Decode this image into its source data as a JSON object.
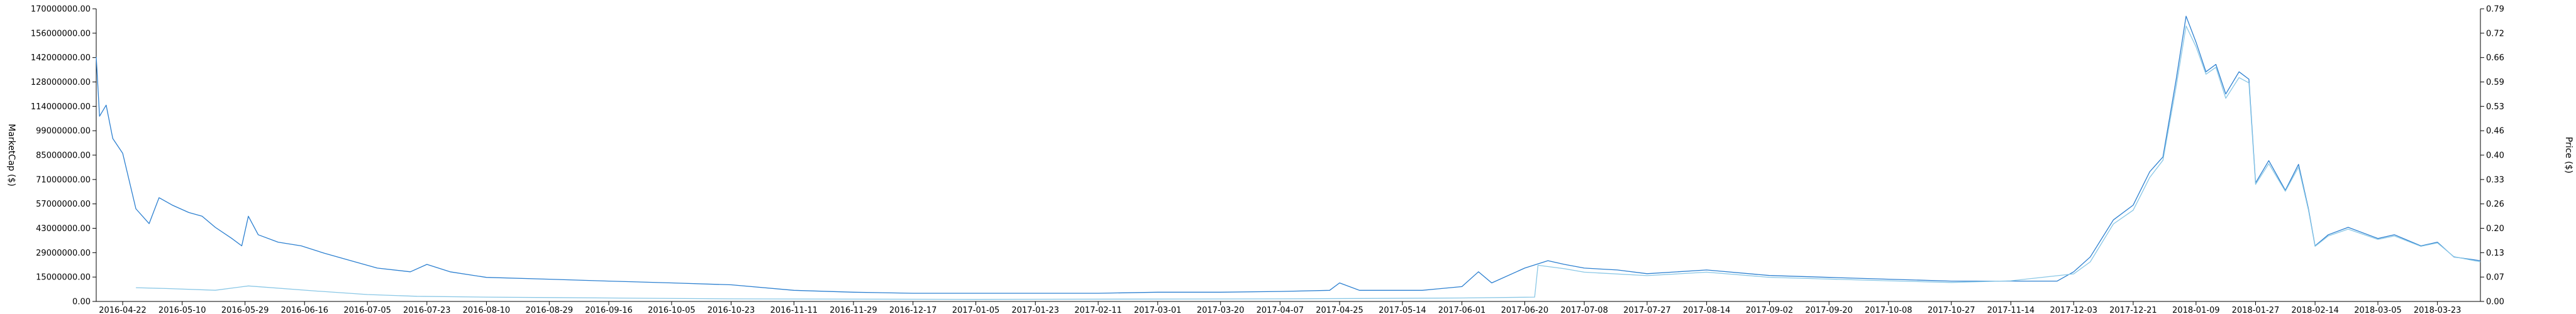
{
  "chart_data": {
    "type": "line",
    "title": "",
    "ylabel_left": "MarketCap ($)",
    "ylabel_right": "Price ($)",
    "ylim_left": [
      0,
      170000000
    ],
    "ylim_right": [
      0,
      0.79
    ],
    "grid": false,
    "left_ticks": [
      "0.00",
      "15000000.00",
      "29000000.00",
      "43000000.00",
      "57000000.00",
      "71000000.00",
      "85000000.00",
      "99000000.00",
      "114000000.00",
      "128000000.00",
      "142000000.00",
      "156000000.00",
      "170000000.00"
    ],
    "right_ticks": [
      "0.00",
      "0.07",
      "0.13",
      "0.20",
      "0.26",
      "0.33",
      "0.40",
      "0.46",
      "0.53",
      "0.59",
      "0.66",
      "0.72",
      "0.79"
    ],
    "x_ticks": [
      "2016-04-22",
      "2016-05-10",
      "2016-05-29",
      "2016-06-16",
      "2016-07-05",
      "2016-07-23",
      "2016-08-10",
      "2016-08-29",
      "2016-09-16",
      "2016-10-05",
      "2016-10-23",
      "2016-11-11",
      "2016-11-29",
      "2016-12-17",
      "2017-01-05",
      "2017-01-23",
      "2017-02-11",
      "2017-03-01",
      "2017-03-20",
      "2017-04-07",
      "2017-04-25",
      "2017-05-14",
      "2017-06-01",
      "2017-06-20",
      "2017-07-08",
      "2017-07-27",
      "2017-08-14",
      "2017-09-02",
      "2017-09-20",
      "2017-10-08",
      "2017-10-27",
      "2017-11-14",
      "2017-12-03",
      "2017-12-21",
      "2018-01-09",
      "2018-01-27",
      "2018-02-14",
      "2018-03-05",
      "2018-03-23"
    ],
    "x_range": [
      "2016-04-14",
      "2018-04-05"
    ],
    "series": [
      {
        "name": "",
        "axis": "right",
        "color": "#2b7fd0",
        "points": [
          [
            "2016-04-14",
            0.66
          ],
          [
            "2016-04-15",
            0.5
          ],
          [
            "2016-04-17",
            0.53
          ],
          [
            "2016-04-19",
            0.44
          ],
          [
            "2016-04-22",
            0.4
          ],
          [
            "2016-04-26",
            0.25
          ],
          [
            "2016-04-30",
            0.21
          ],
          [
            "2016-05-03",
            0.28
          ],
          [
            "2016-05-07",
            0.26
          ],
          [
            "2016-05-12",
            0.24
          ],
          [
            "2016-05-16",
            0.23
          ],
          [
            "2016-05-20",
            0.2
          ],
          [
            "2016-05-25",
            0.17
          ],
          [
            "2016-05-28",
            0.15
          ],
          [
            "2016-05-30",
            0.23
          ],
          [
            "2016-06-02",
            0.18
          ],
          [
            "2016-06-08",
            0.16
          ],
          [
            "2016-06-15",
            0.15
          ],
          [
            "2016-06-22",
            0.13
          ],
          [
            "2016-06-30",
            0.11
          ],
          [
            "2016-07-08",
            0.09
          ],
          [
            "2016-07-18",
            0.08
          ],
          [
            "2016-07-23",
            0.1
          ],
          [
            "2016-07-30",
            0.08
          ],
          [
            "2016-08-10",
            0.065
          ],
          [
            "2016-08-29",
            0.06
          ],
          [
            "2016-09-16",
            0.055
          ],
          [
            "2016-10-05",
            0.05
          ],
          [
            "2016-10-23",
            0.045
          ],
          [
            "2016-11-11",
            0.03
          ],
          [
            "2016-11-29",
            0.025
          ],
          [
            "2016-12-17",
            0.022
          ],
          [
            "2017-01-05",
            0.022
          ],
          [
            "2017-01-23",
            0.022
          ],
          [
            "2017-02-11",
            0.022
          ],
          [
            "2017-03-01",
            0.025
          ],
          [
            "2017-03-20",
            0.025
          ],
          [
            "2017-04-07",
            0.027
          ],
          [
            "2017-04-22",
            0.03
          ],
          [
            "2017-04-25",
            0.05
          ],
          [
            "2017-05-01",
            0.03
          ],
          [
            "2017-05-20",
            0.03
          ],
          [
            "2017-06-01",
            0.04
          ],
          [
            "2017-06-06",
            0.08
          ],
          [
            "2017-06-10",
            0.05
          ],
          [
            "2017-06-20",
            0.09
          ],
          [
            "2017-06-27",
            0.11
          ],
          [
            "2017-07-02",
            0.1
          ],
          [
            "2017-07-08",
            0.09
          ],
          [
            "2017-07-18",
            0.085
          ],
          [
            "2017-07-27",
            0.075
          ],
          [
            "2017-08-14",
            0.085
          ],
          [
            "2017-09-02",
            0.07
          ],
          [
            "2017-09-20",
            0.065
          ],
          [
            "2017-10-08",
            0.06
          ],
          [
            "2017-10-27",
            0.055
          ],
          [
            "2017-11-14",
            0.055
          ],
          [
            "2017-11-28",
            0.055
          ],
          [
            "2017-12-03",
            0.08
          ],
          [
            "2017-12-08",
            0.12
          ],
          [
            "2017-12-15",
            0.22
          ],
          [
            "2017-12-21",
            0.26
          ],
          [
            "2017-12-26",
            0.35
          ],
          [
            "2017-12-30",
            0.39
          ],
          [
            "2018-01-03",
            0.6
          ],
          [
            "2018-01-06",
            0.77
          ],
          [
            "2018-01-09",
            0.7
          ],
          [
            "2018-01-12",
            0.62
          ],
          [
            "2018-01-15",
            0.64
          ],
          [
            "2018-01-18",
            0.56
          ],
          [
            "2018-01-22",
            0.62
          ],
          [
            "2018-01-25",
            0.6
          ],
          [
            "2018-01-27",
            0.32
          ],
          [
            "2018-01-31",
            0.38
          ],
          [
            "2018-02-05",
            0.3
          ],
          [
            "2018-02-09",
            0.37
          ],
          [
            "2018-02-12",
            0.25
          ],
          [
            "2018-02-14",
            0.15
          ],
          [
            "2018-02-18",
            0.18
          ],
          [
            "2018-02-24",
            0.2
          ],
          [
            "2018-03-05",
            0.17
          ],
          [
            "2018-03-10",
            0.18
          ],
          [
            "2018-03-18",
            0.15
          ],
          [
            "2018-03-23",
            0.16
          ],
          [
            "2018-03-28",
            0.12
          ],
          [
            "2018-04-05",
            0.11
          ]
        ]
      },
      {
        "name": "",
        "axis": "left",
        "color": "#89c7e6",
        "points": [
          [
            "2016-04-26",
            8000000
          ],
          [
            "2016-05-05",
            7500000
          ],
          [
            "2016-05-20",
            6500000
          ],
          [
            "2016-05-30",
            9000000
          ],
          [
            "2016-06-20",
            6000000
          ],
          [
            "2016-07-05",
            4000000
          ],
          [
            "2016-07-20",
            3000000
          ],
          [
            "2016-08-10",
            2500000
          ],
          [
            "2016-09-16",
            2000000
          ],
          [
            "2016-10-23",
            1500000
          ],
          [
            "2017-01-05",
            1200000
          ],
          [
            "2017-04-07",
            1500000
          ],
          [
            "2017-06-01",
            2000000
          ],
          [
            "2017-06-23",
            2500000
          ],
          [
            "2017-06-24",
            21000000
          ],
          [
            "2017-07-02",
            19000000
          ],
          [
            "2017-07-08",
            17000000
          ],
          [
            "2017-07-27",
            15000000
          ],
          [
            "2017-08-14",
            17000000
          ],
          [
            "2017-09-02",
            14000000
          ],
          [
            "2017-09-20",
            13000000
          ],
          [
            "2017-10-08",
            12000000
          ],
          [
            "2017-10-27",
            11000000
          ],
          [
            "2017-11-14",
            12000000
          ],
          [
            "2017-12-03",
            16000000
          ],
          [
            "2017-12-08",
            23000000
          ],
          [
            "2017-12-15",
            45000000
          ],
          [
            "2017-12-21",
            53000000
          ],
          [
            "2017-12-26",
            72000000
          ],
          [
            "2017-12-30",
            82000000
          ],
          [
            "2018-01-03",
            125000000
          ],
          [
            "2018-01-06",
            160000000
          ],
          [
            "2018-01-09",
            148000000
          ],
          [
            "2018-01-12",
            132000000
          ],
          [
            "2018-01-15",
            136000000
          ],
          [
            "2018-01-18",
            118000000
          ],
          [
            "2018-01-22",
            130000000
          ],
          [
            "2018-01-25",
            127000000
          ],
          [
            "2018-01-27",
            68000000
          ],
          [
            "2018-01-31",
            80000000
          ],
          [
            "2018-02-05",
            64000000
          ],
          [
            "2018-02-09",
            78000000
          ],
          [
            "2018-02-12",
            53000000
          ],
          [
            "2018-02-14",
            32000000
          ],
          [
            "2018-02-18",
            38000000
          ],
          [
            "2018-02-24",
            42000000
          ],
          [
            "2018-03-05",
            36000000
          ],
          [
            "2018-03-10",
            38000000
          ],
          [
            "2018-03-18",
            32000000
          ],
          [
            "2018-03-23",
            34000000
          ],
          [
            "2018-03-28",
            26000000
          ],
          [
            "2018-04-05",
            23000000
          ]
        ]
      }
    ]
  }
}
